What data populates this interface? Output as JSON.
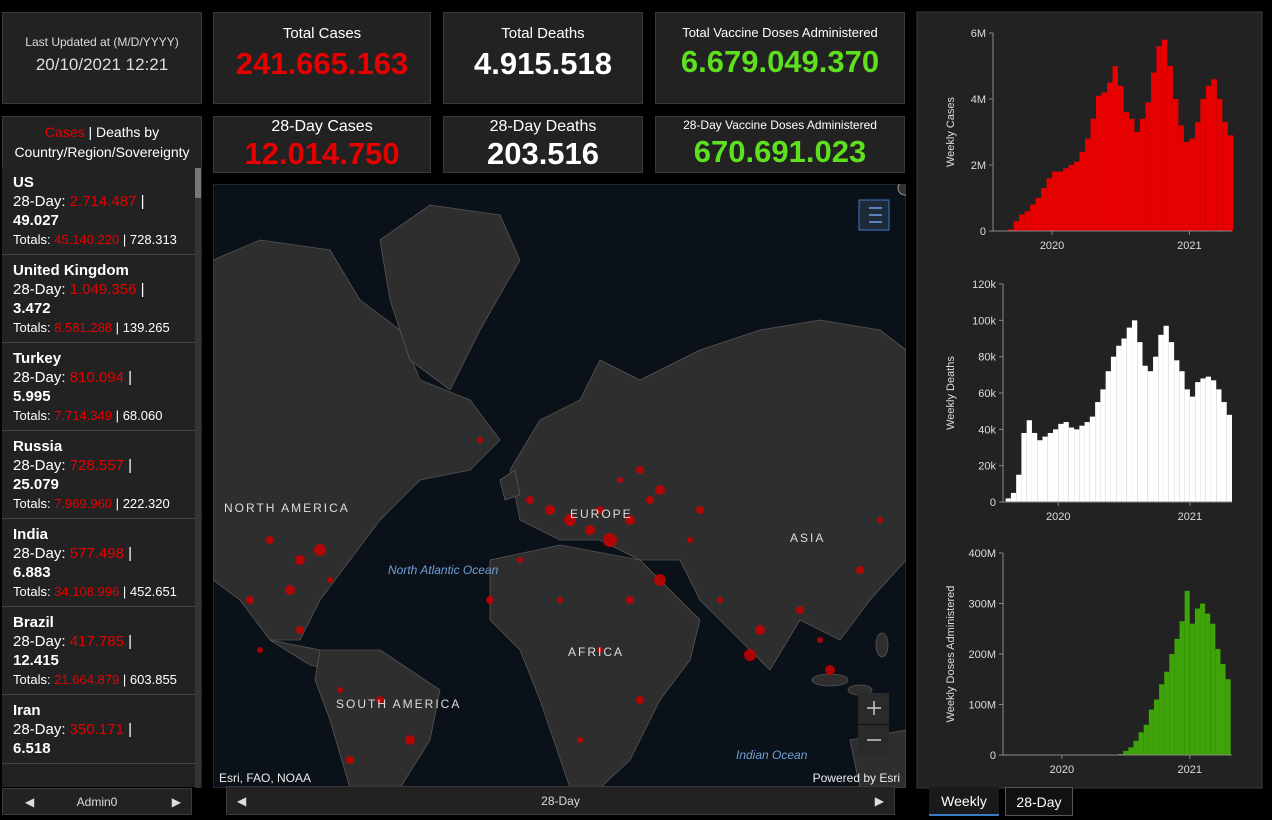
{
  "header": {
    "last_updated_label": "Last Updated at (M/D/YYYY)",
    "last_updated": "20/10/2021 12:21"
  },
  "kpis": [
    {
      "title": "Total Cases",
      "value": "241.665.163"
    },
    {
      "title": "Total Deaths",
      "value": "4.915.518"
    },
    {
      "title": "Total Vaccine Doses Administered",
      "value": "6.679.049.370"
    },
    {
      "title": "28-Day Cases",
      "value": "12.014.750"
    },
    {
      "title": "28-Day Deaths",
      "value": "203.516"
    },
    {
      "title": "28-Day Vaccine Doses Administered",
      "value": "670.691.023"
    }
  ],
  "list": {
    "header_cases": "Cases",
    "separator": "|",
    "header_rest": "Deaths by Country/Region/Sovereignty",
    "day28_label": "28-Day:",
    "totals_label": "Totals:",
    "items": [
      {
        "name": "US",
        "cases_28": "2.714.487",
        "deaths_28": "49.027",
        "total_cases": "45.140.220",
        "total_deaths": "728.313"
      },
      {
        "name": "United Kingdom",
        "cases_28": "1.049.356",
        "deaths_28": "3.472",
        "total_cases": "8.581.288",
        "total_deaths": "139.265"
      },
      {
        "name": "Turkey",
        "cases_28": "810.094",
        "deaths_28": "5.995",
        "total_cases": "7.714.349",
        "total_deaths": "68.060"
      },
      {
        "name": "Russia",
        "cases_28": "728.557",
        "deaths_28": "25.079",
        "total_cases": "7.969.960",
        "total_deaths": "222.320"
      },
      {
        "name": "India",
        "cases_28": "577.498",
        "deaths_28": "6.883",
        "total_cases": "34.108.996",
        "total_deaths": "452.651"
      },
      {
        "name": "Brazil",
        "cases_28": "417.785",
        "deaths_28": "12.415",
        "total_cases": "21.664.879",
        "total_deaths": "603.855"
      },
      {
        "name": "Iran",
        "cases_28": "350.171",
        "deaths_28": "6.518"
      }
    ],
    "footer": "Admin0"
  },
  "map": {
    "labels": {
      "north_america": "NORTH AMERICA",
      "europe": "EUROPE",
      "asia": "ASIA",
      "africa": "AFRICA",
      "south_america": "SOUTH AMERICA",
      "atlantic": "North Atlantic Ocean",
      "indian": "Indian Ocean"
    },
    "attribution": "Esri, FAO, NOAA",
    "powered": "Powered by Esri",
    "footer": "28-Day"
  },
  "tabs": [
    "Weekly",
    "28-Day"
  ],
  "chart_data": [
    {
      "type": "bar",
      "y_label": "Weekly Cases",
      "color": "#e60000",
      "x": [
        2019.62,
        2019.66,
        2019.7,
        2019.74,
        2019.78,
        2019.82,
        2019.86,
        2019.9,
        2019.94,
        2019.98,
        2020.02,
        2020.06,
        2020.1,
        2020.14,
        2020.18,
        2020.22,
        2020.26,
        2020.3,
        2020.34,
        2020.38,
        2020.42,
        2020.46,
        2020.5,
        2020.54,
        2020.58,
        2020.62,
        2020.66,
        2020.7,
        2020.74,
        2020.78,
        2020.82,
        2020.86,
        2020.9,
        2020.94,
        2020.98,
        2021.02,
        2021.06,
        2021.1,
        2021.14,
        2021.18,
        2021.22,
        2021.26,
        2021.3
      ],
      "values": [
        0,
        10000,
        50000,
        300000,
        500000,
        600000,
        800000,
        1000000,
        1300000,
        1600000,
        1800000,
        1800000,
        1900000,
        2000000,
        2100000,
        2400000,
        2800000,
        3400000,
        4100000,
        4200000,
        4500000,
        5000000,
        4400000,
        3600000,
        3400000,
        3000000,
        3400000,
        3900000,
        4800000,
        5600000,
        5800000,
        5000000,
        4000000,
        3200000,
        2700000,
        2800000,
        3300000,
        4000000,
        4400000,
        4600000,
        4000000,
        3300000,
        2900000
      ],
      "xlim": [
        2019.57,
        2021.31
      ],
      "xticks": [
        2020,
        2021
      ],
      "ylim": [
        0,
        6000000
      ],
      "yticks": [
        0,
        {
          "value": 2000000,
          "label": "2M"
        },
        {
          "value": 4000000,
          "label": "4M"
        },
        {
          "value": 6000000,
          "label": "6M"
        }
      ]
    },
    {
      "type": "bar",
      "y_label": "Weekly Deaths",
      "color": "#ffffff",
      "x": [
        2019.62,
        2019.66,
        2019.7,
        2019.74,
        2019.78,
        2019.82,
        2019.86,
        2019.9,
        2019.94,
        2019.98,
        2020.02,
        2020.06,
        2020.1,
        2020.14,
        2020.18,
        2020.22,
        2020.26,
        2020.3,
        2020.34,
        2020.38,
        2020.42,
        2020.46,
        2020.5,
        2020.54,
        2020.58,
        2020.62,
        2020.66,
        2020.7,
        2020.74,
        2020.78,
        2020.82,
        2020.86,
        2020.9,
        2020.94,
        2020.98,
        2021.02,
        2021.06,
        2021.1,
        2021.14,
        2021.18,
        2021.22,
        2021.26,
        2021.3
      ],
      "values": [
        2000,
        5000,
        15000,
        38000,
        45000,
        38000,
        34000,
        36000,
        38000,
        40000,
        43000,
        44000,
        41000,
        40000,
        42000,
        44000,
        47000,
        55000,
        62000,
        72000,
        80000,
        86000,
        90000,
        96000,
        100000,
        88000,
        75000,
        72000,
        80000,
        92000,
        97000,
        88000,
        78000,
        72000,
        62000,
        58000,
        66000,
        68000,
        69000,
        67000,
        62000,
        55000,
        48000
      ],
      "xlim": [
        2019.58,
        2021.32
      ],
      "xticks": [
        2020,
        2021
      ],
      "ylim": [
        0,
        120000
      ],
      "yticks": [
        0,
        {
          "value": 20000,
          "label": "20k"
        },
        {
          "value": 40000,
          "label": "40k"
        },
        {
          "value": 60000,
          "label": "60k"
        },
        {
          "value": 80000,
          "label": "80k"
        },
        {
          "value": 100000,
          "label": "100k"
        },
        {
          "value": 120000,
          "label": "120k"
        }
      ]
    },
    {
      "type": "bar",
      "y_label": "Weekly Doses Administered",
      "color": "#3fa30a",
      "x": [
        2019.62,
        2019.66,
        2019.7,
        2019.74,
        2019.78,
        2019.82,
        2019.86,
        2019.9,
        2019.94,
        2019.98,
        2020.02,
        2020.06,
        2020.1,
        2020.14,
        2020.18,
        2020.22,
        2020.26,
        2020.3,
        2020.34,
        2020.38,
        2020.42,
        2020.46,
        2020.5,
        2020.54,
        2020.58,
        2020.62,
        2020.66,
        2020.7,
        2020.74,
        2020.78,
        2020.82,
        2020.86,
        2020.9,
        2020.94,
        2020.98,
        2021.02,
        2021.06,
        2021.1,
        2021.14,
        2021.18,
        2021.22,
        2021.26,
        2021.3
      ],
      "values": [
        0,
        0,
        0,
        0,
        0,
        0,
        0,
        0,
        0,
        0,
        0,
        0,
        0,
        0,
        0,
        0,
        0,
        0,
        0,
        0,
        0,
        2000000,
        8000000,
        15000000,
        28000000,
        45000000,
        60000000,
        90000000,
        110000000,
        140000000,
        165000000,
        200000000,
        230000000,
        265000000,
        325000000,
        260000000,
        290000000,
        300000000,
        280000000,
        260000000,
        210000000,
        180000000,
        150000000
      ],
      "xlim": [
        2019.54,
        2021.33
      ],
      "xticks": [
        2020,
        2021
      ],
      "ylim": [
        0,
        400000000
      ],
      "yticks": [
        0,
        {
          "value": 100000000,
          "label": "100M"
        },
        {
          "value": 200000000,
          "label": "200M"
        },
        {
          "value": 300000000,
          "label": "300M"
        },
        {
          "value": 400000000,
          "label": "400M"
        }
      ]
    }
  ]
}
